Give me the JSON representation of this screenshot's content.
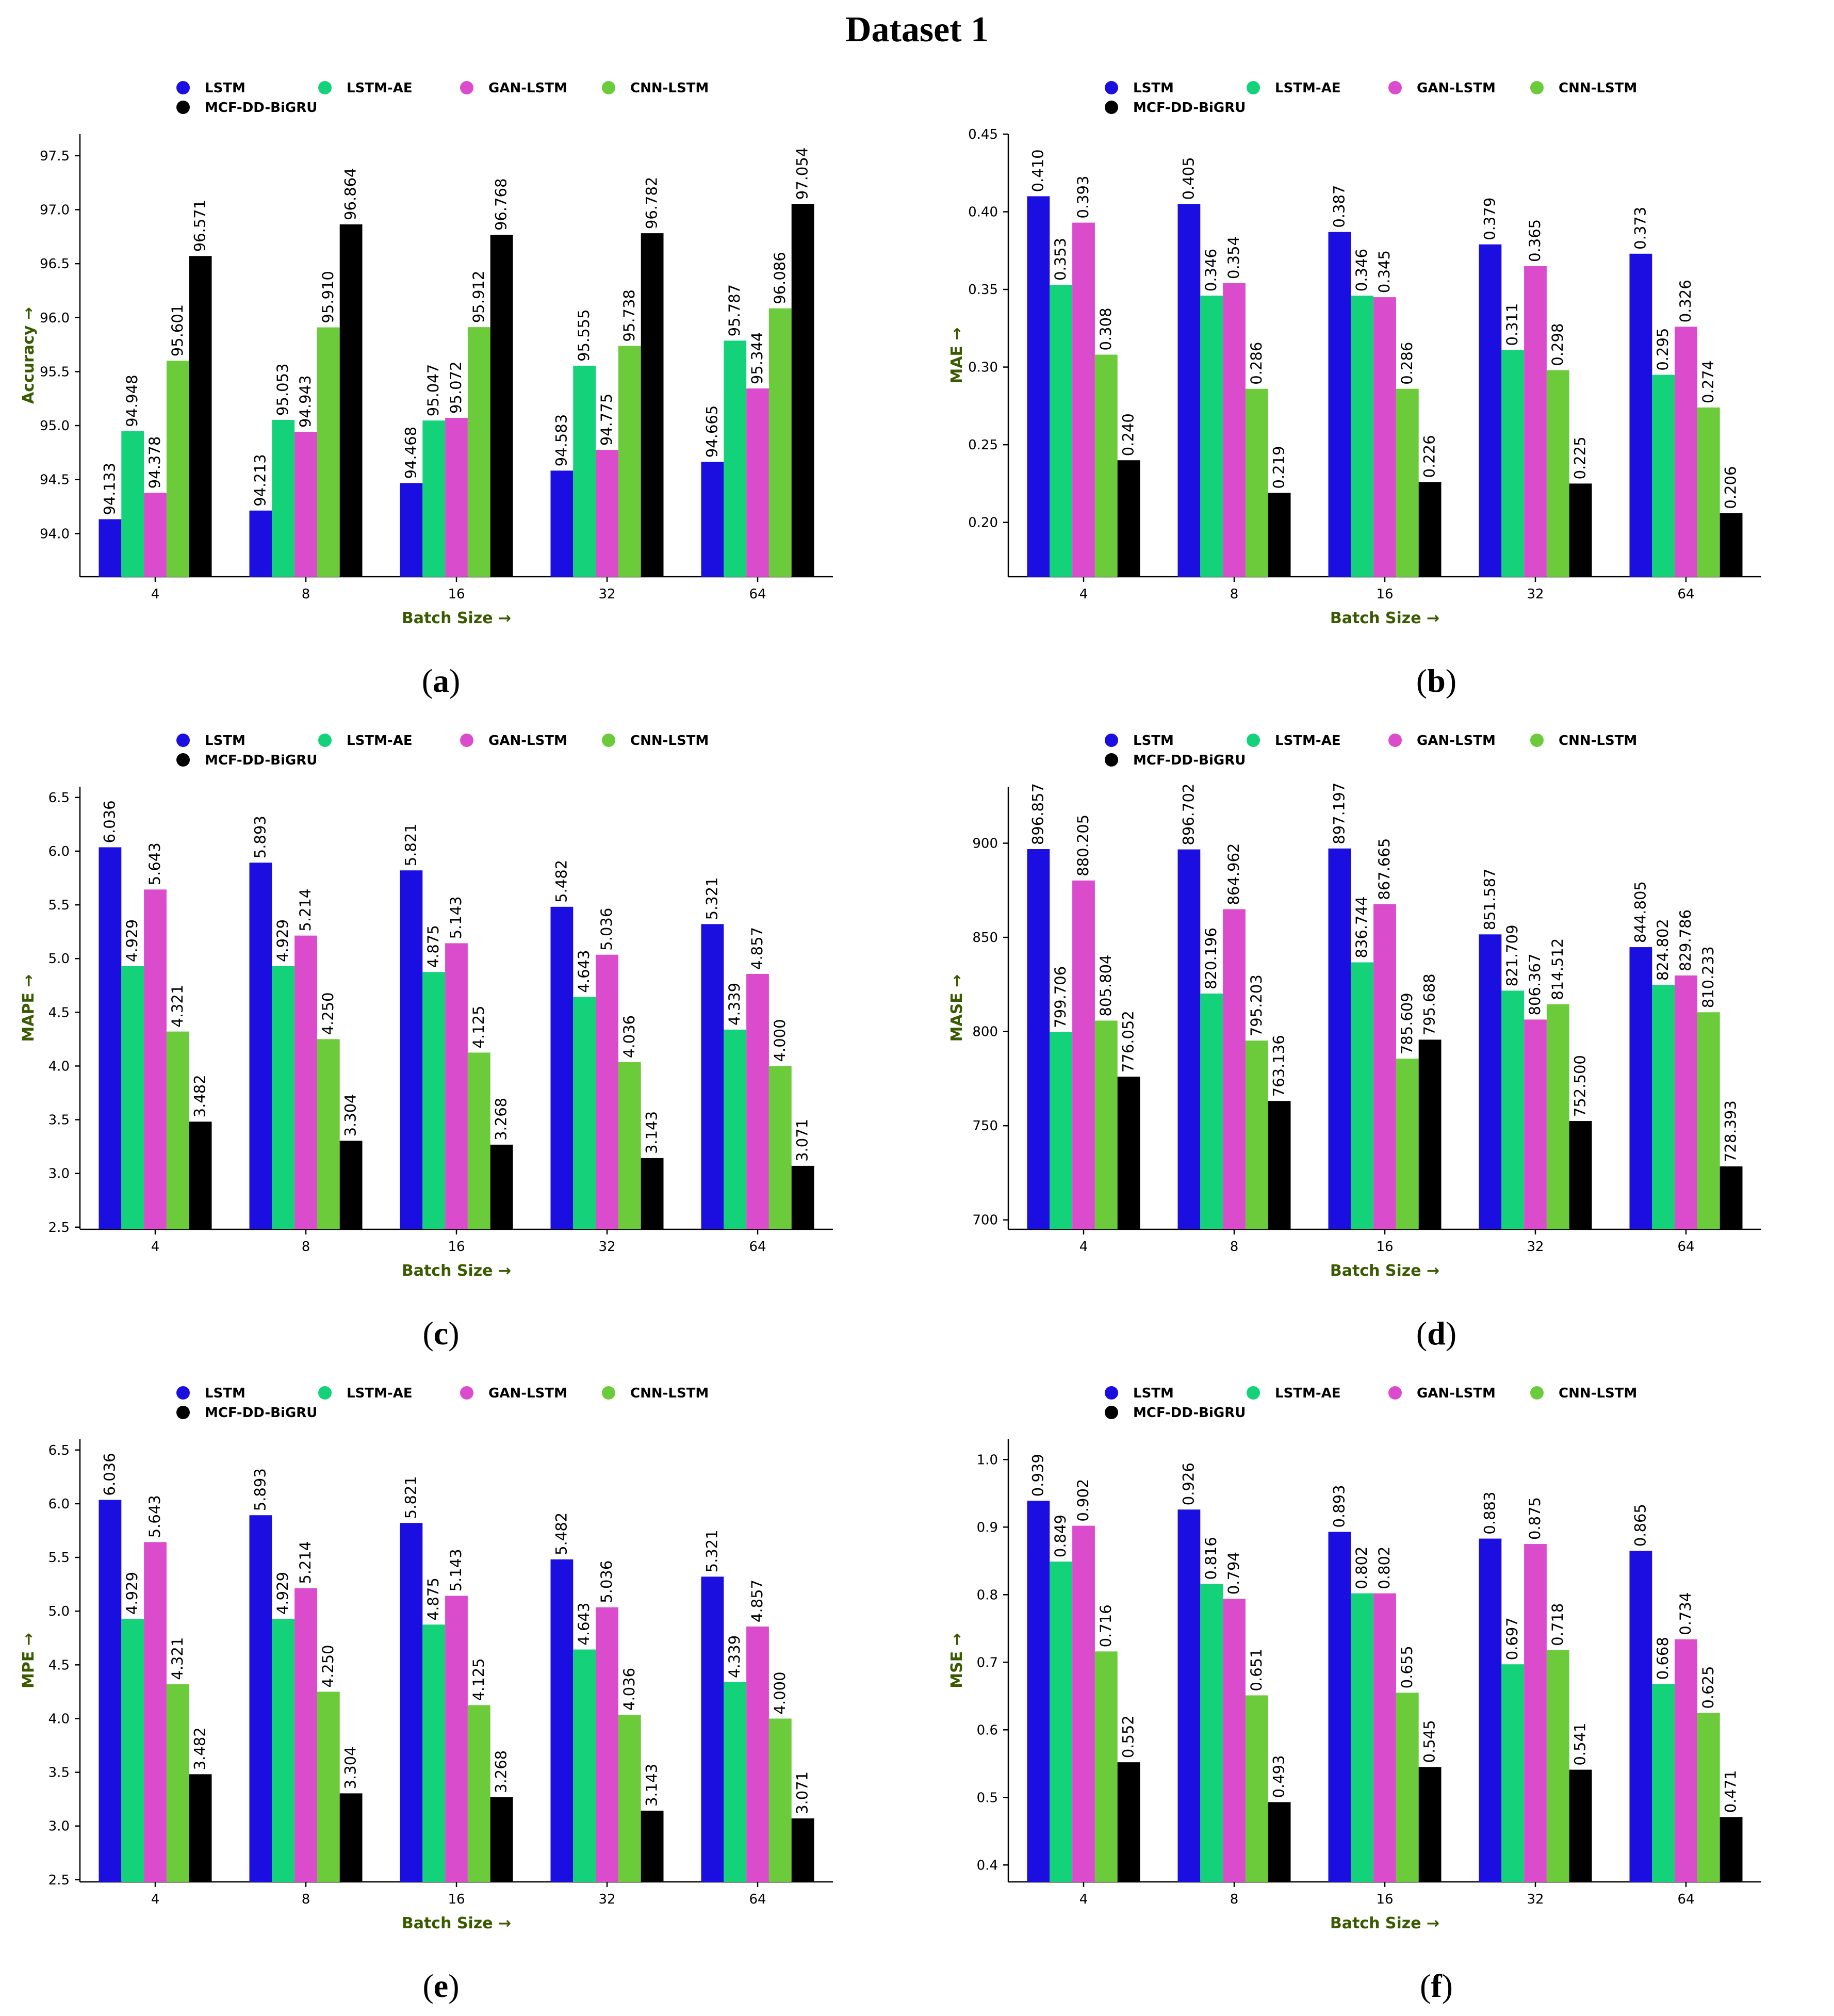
{
  "figure_title": "Dataset 1",
  "colors": {
    "LSTM": "#1a0ee0",
    "LSTM-AE": "#14d27a",
    "GAN-LSTM": "#db4ccd",
    "CNN-LSTM": "#6ccb3a",
    "MCF-DD-BiGRU": "#000000",
    "axis_label": "#3a5a00"
  },
  "panel_labels": [
    "a",
    "b",
    "c",
    "d",
    "e",
    "f"
  ],
  "chart_data": [
    {
      "type": "bar",
      "xlabel": "Batch Size →",
      "ylabel": "Accuracy →",
      "categories": [
        "4",
        "8",
        "16",
        "32",
        "64"
      ],
      "ylim": [
        93.6,
        97.7
      ],
      "yticks": [
        "94.0",
        "94.5",
        "95.0",
        "95.5",
        "96.0",
        "96.5",
        "97.0",
        "97.5"
      ],
      "legend_position": "top",
      "series": [
        {
          "name": "LSTM",
          "values": [
            94.133,
            94.213,
            94.468,
            94.583,
            94.665
          ],
          "labels": [
            "94.133",
            "94.213",
            "94.468",
            "94.583",
            "94.665"
          ]
        },
        {
          "name": "LSTM-AE",
          "values": [
            94.948,
            95.053,
            95.047,
            95.555,
            95.787
          ],
          "labels": [
            "94.948",
            "95.053",
            "95.047",
            "95.555",
            "95.787"
          ]
        },
        {
          "name": "GAN-LSTM",
          "values": [
            94.378,
            94.943,
            95.072,
            94.775,
            95.344
          ],
          "labels": [
            "94.378",
            "94.943",
            "95.072",
            "94.775",
            "95.344"
          ]
        },
        {
          "name": "CNN-LSTM",
          "values": [
            95.601,
            95.91,
            95.912,
            95.738,
            96.086
          ],
          "labels": [
            "95.601",
            "95.910",
            "95.912",
            "95.738",
            "96.086"
          ]
        },
        {
          "name": "MCF-DD-BiGRU",
          "values": [
            96.571,
            96.864,
            96.768,
            96.782,
            97.054
          ],
          "labels": [
            "96.571",
            "96.864",
            "96.768",
            "96.782",
            "97.054"
          ]
        }
      ]
    },
    {
      "type": "bar",
      "xlabel": "Batch Size →",
      "ylabel": "MAE →",
      "categories": [
        "4",
        "8",
        "16",
        "32",
        "64"
      ],
      "ylim": [
        0.165,
        0.45
      ],
      "yticks": [
        "0.20",
        "0.25",
        "0.30",
        "0.35",
        "0.40",
        "0.45"
      ],
      "legend_position": "top",
      "series": [
        {
          "name": "LSTM",
          "values": [
            0.41,
            0.405,
            0.387,
            0.379,
            0.373
          ],
          "labels": [
            "0.410",
            "0.405",
            "0.387",
            "0.379",
            "0.373"
          ]
        },
        {
          "name": "LSTM-AE",
          "values": [
            0.353,
            0.346,
            0.346,
            0.311,
            0.295
          ],
          "labels": [
            "0.353",
            "0.346",
            "0.346",
            "0.311",
            "0.295"
          ]
        },
        {
          "name": "GAN-LSTM",
          "values": [
            0.393,
            0.354,
            0.345,
            0.365,
            0.326
          ],
          "labels": [
            "0.393",
            "0.354",
            "0.345",
            "0.365",
            "0.326"
          ]
        },
        {
          "name": "CNN-LSTM",
          "values": [
            0.308,
            0.286,
            0.286,
            0.298,
            0.274
          ],
          "labels": [
            "0.308",
            "0.286",
            "0.286",
            "0.298",
            "0.274"
          ]
        },
        {
          "name": "MCF-DD-BiGRU",
          "values": [
            0.24,
            0.219,
            0.226,
            0.225,
            0.206
          ],
          "labels": [
            "0.240",
            "0.219",
            "0.226",
            "0.225",
            "0.206"
          ]
        }
      ]
    },
    {
      "type": "bar",
      "xlabel": "Batch Size →",
      "ylabel": "MAPE →",
      "categories": [
        "4",
        "8",
        "16",
        "32",
        "64"
      ],
      "ylim": [
        2.48,
        6.6
      ],
      "yticks": [
        "2.5",
        "3.0",
        "3.5",
        "4.0",
        "4.5",
        "5.0",
        "5.5",
        "6.0",
        "6.5"
      ],
      "legend_position": "top",
      "series": [
        {
          "name": "LSTM",
          "values": [
            6.036,
            5.893,
            5.821,
            5.482,
            5.321
          ],
          "labels": [
            "6.036",
            "5.893",
            "5.821",
            "5.482",
            "5.321"
          ]
        },
        {
          "name": "LSTM-AE",
          "values": [
            4.929,
            4.929,
            4.875,
            4.643,
            4.339
          ],
          "labels": [
            "4.929",
            "4.929",
            "4.875",
            "4.643",
            "4.339"
          ]
        },
        {
          "name": "GAN-LSTM",
          "values": [
            5.643,
            5.214,
            5.143,
            5.036,
            4.857
          ],
          "labels": [
            "5.643",
            "5.214",
            "5.143",
            "5.036",
            "4.857"
          ]
        },
        {
          "name": "CNN-LSTM",
          "values": [
            4.321,
            4.25,
            4.125,
            4.036,
            4.0
          ],
          "labels": [
            "4.321",
            "4.250",
            "4.125",
            "4.036",
            "4.000"
          ]
        },
        {
          "name": "MCF-DD-BiGRU",
          "values": [
            3.482,
            3.304,
            3.268,
            3.143,
            3.071
          ],
          "labels": [
            "3.482",
            "3.304",
            "3.268",
            "3.143",
            "3.071"
          ]
        }
      ]
    },
    {
      "type": "bar",
      "xlabel": "Batch Size →",
      "ylabel": "MASE →",
      "categories": [
        "4",
        "8",
        "16",
        "32",
        "64"
      ],
      "ylim": [
        695,
        930
      ],
      "yticks": [
        "700",
        "750",
        "800",
        "850",
        "900"
      ],
      "legend_position": "top",
      "series": [
        {
          "name": "LSTM",
          "values": [
            896.857,
            896.702,
            897.197,
            851.587,
            844.805
          ],
          "labels": [
            "896.857",
            "896.702",
            "897.197",
            "851.587",
            "844.805"
          ]
        },
        {
          "name": "LSTM-AE",
          "values": [
            799.706,
            820.196,
            836.744,
            821.709,
            824.802
          ],
          "labels": [
            "799.706",
            "820.196",
            "836.744",
            "821.709",
            "824.802"
          ]
        },
        {
          "name": "GAN-LSTM",
          "values": [
            880.205,
            864.962,
            867.665,
            806.367,
            829.786
          ],
          "labels": [
            "880.205",
            "864.962",
            "867.665",
            "806.367",
            "829.786"
          ]
        },
        {
          "name": "CNN-LSTM",
          "values": [
            805.804,
            795.203,
            785.609,
            814.512,
            810.233
          ],
          "labels": [
            "805.804",
            "795.203",
            "785.609",
            "814.512",
            "810.233"
          ]
        },
        {
          "name": "MCF-DD-BiGRU",
          "values": [
            776.052,
            763.136,
            795.688,
            752.5,
            728.393
          ],
          "labels": [
            "776.052",
            "763.136",
            "795.688",
            "752.500",
            "728.393"
          ]
        }
      ]
    },
    {
      "type": "bar",
      "xlabel": "Batch Size →",
      "ylabel": "MPE →",
      "categories": [
        "4",
        "8",
        "16",
        "32",
        "64"
      ],
      "ylim": [
        2.48,
        6.6
      ],
      "yticks": [
        "2.5",
        "3.0",
        "3.5",
        "4.0",
        "4.5",
        "5.0",
        "5.5",
        "6.0",
        "6.5"
      ],
      "legend_position": "top",
      "series": [
        {
          "name": "LSTM",
          "values": [
            6.036,
            5.893,
            5.821,
            5.482,
            5.321
          ],
          "labels": [
            "6.036",
            "5.893",
            "5.821",
            "5.482",
            "5.321"
          ]
        },
        {
          "name": "LSTM-AE",
          "values": [
            4.929,
            4.929,
            4.875,
            4.643,
            4.339
          ],
          "labels": [
            "4.929",
            "4.929",
            "4.875",
            "4.643",
            "4.339"
          ]
        },
        {
          "name": "GAN-LSTM",
          "values": [
            5.643,
            5.214,
            5.143,
            5.036,
            4.857
          ],
          "labels": [
            "5.643",
            "5.214",
            "5.143",
            "5.036",
            "4.857"
          ]
        },
        {
          "name": "CNN-LSTM",
          "values": [
            4.321,
            4.25,
            4.125,
            4.036,
            4.0
          ],
          "labels": [
            "4.321",
            "4.250",
            "4.125",
            "4.036",
            "4.000"
          ]
        },
        {
          "name": "MCF-DD-BiGRU",
          "values": [
            3.482,
            3.304,
            3.268,
            3.143,
            3.071
          ],
          "labels": [
            "3.482",
            "3.304",
            "3.268",
            "3.143",
            "3.071"
          ]
        }
      ]
    },
    {
      "type": "bar",
      "xlabel": "Batch Size →",
      "ylabel": "MSE →",
      "categories": [
        "4",
        "8",
        "16",
        "32",
        "64"
      ],
      "ylim": [
        0.375,
        1.03
      ],
      "yticks": [
        "0.4",
        "0.5",
        "0.6",
        "0.7",
        "0.8",
        "0.9",
        "1.0"
      ],
      "legend_position": "top",
      "series": [
        {
          "name": "LSTM",
          "values": [
            0.939,
            0.926,
            0.893,
            0.883,
            0.865
          ],
          "labels": [
            "0.939",
            "0.926",
            "0.893",
            "0.883",
            "0.865"
          ]
        },
        {
          "name": "LSTM-AE",
          "values": [
            0.849,
            0.816,
            0.802,
            0.697,
            0.668
          ],
          "labels": [
            "0.849",
            "0.816",
            "0.802",
            "0.697",
            "0.668"
          ]
        },
        {
          "name": "GAN-LSTM",
          "values": [
            0.902,
            0.794,
            0.802,
            0.875,
            0.734
          ],
          "labels": [
            "0.902",
            "0.794",
            "0.802",
            "0.875",
            "0.734"
          ]
        },
        {
          "name": "CNN-LSTM",
          "values": [
            0.716,
            0.651,
            0.655,
            0.718,
            0.625
          ],
          "labels": [
            "0.716",
            "0.651",
            "0.655",
            "0.718",
            "0.625"
          ]
        },
        {
          "name": "MCF-DD-BiGRU",
          "values": [
            0.552,
            0.493,
            0.545,
            0.541,
            0.471
          ],
          "labels": [
            "0.552",
            "0.493",
            "0.545",
            "0.541",
            "0.471"
          ]
        }
      ]
    }
  ]
}
